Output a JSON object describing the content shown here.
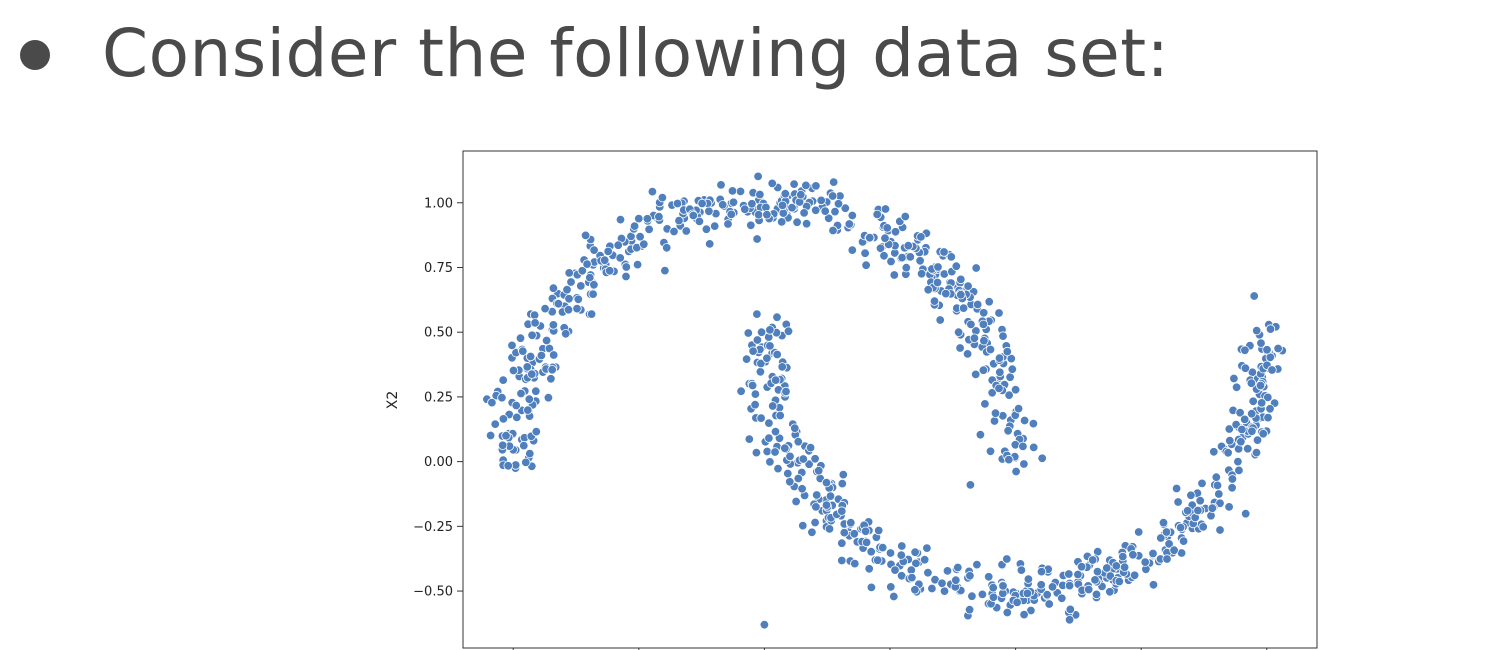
{
  "slide": {
    "bullet_text": "Consider the following data set:"
  },
  "chart_data": {
    "type": "scatter",
    "title": "",
    "xlabel": "",
    "ylabel": "X2",
    "ylim": [
      -0.72,
      1.2
    ],
    "xlim": [
      -1.2,
      2.2
    ],
    "y_ticks": [
      1.0,
      0.75,
      0.5,
      0.25,
      0.0,
      -0.25,
      -0.5
    ],
    "y_tick_labels": [
      "1.00",
      "0.75",
      "0.50",
      "0.25",
      "0.00",
      "−0.25",
      "−0.50"
    ],
    "x_tick_positions": [
      -1.0,
      -0.5,
      0.0,
      0.5,
      1.0,
      1.5,
      2.0
    ],
    "grid": false,
    "marker_color": "#4f7fbd",
    "marker_edge": "#ffffff",
    "series": [
      {
        "shape": "upper-moon",
        "description_values": {
          "center_x": 0.0,
          "center_y": 0.0,
          "radius": 1.0,
          "angle_from_deg": 0,
          "angle_to_deg": 180,
          "noise": 0.05
        },
        "n_points": 500,
        "values": []
      },
      {
        "shape": "lower-moon",
        "description_values": {
          "center_x": 1.0,
          "center_y": 0.5,
          "radius": 1.0,
          "angle_from_deg": 180,
          "angle_to_deg": 360,
          "noise": 0.05
        },
        "n_points": 500,
        "values": []
      }
    ],
    "outliers": [
      {
        "x": 1.95,
        "y": 0.64
      },
      {
        "x": 0.82,
        "y": -0.09
      },
      {
        "x": -0.03,
        "y": 0.57
      },
      {
        "x": 0.9,
        "y": 0.04
      },
      {
        "x": 0.0,
        "y": -0.63
      }
    ]
  }
}
